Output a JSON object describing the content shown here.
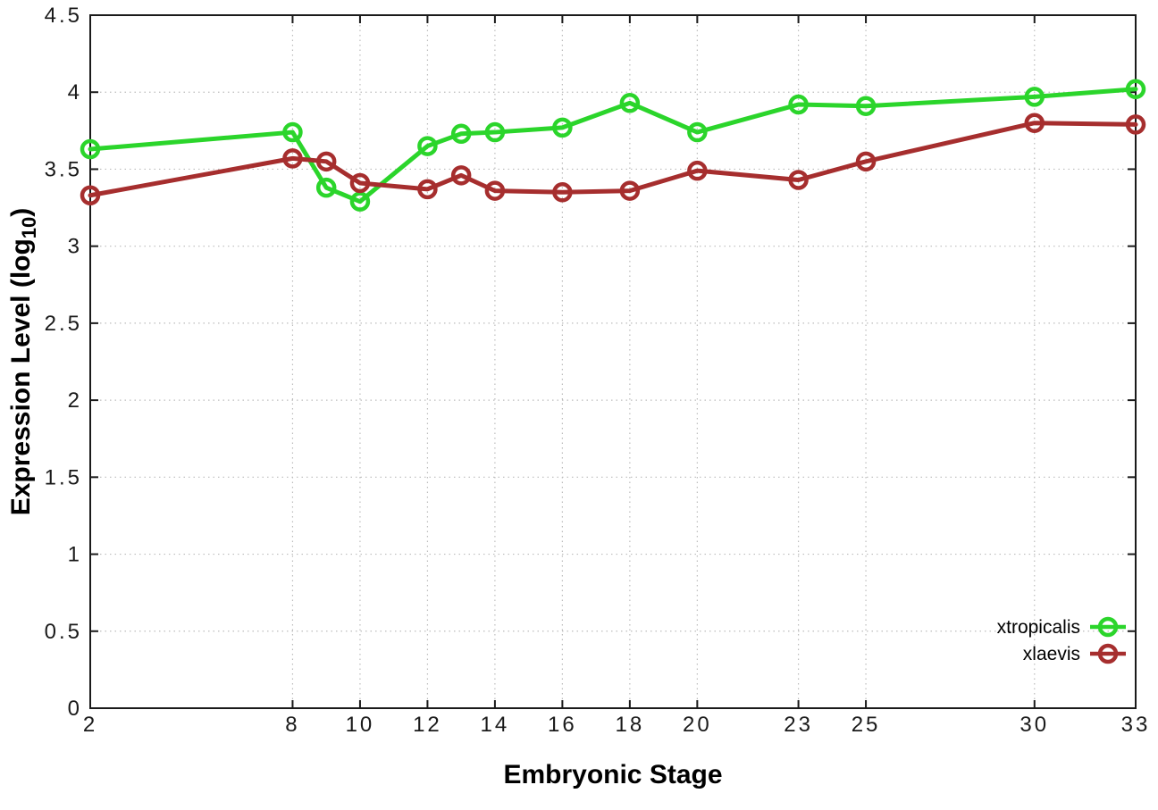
{
  "chart_data": {
    "type": "line",
    "title": "",
    "xlabel": "Embryonic Stage",
    "ylabel": "Expression Level (log10)",
    "ylabel_parts": {
      "prefix": "Expression Level (log",
      "subscript": "10",
      "suffix": ")"
    },
    "x": [
      2,
      8,
      9,
      10,
      12,
      13,
      14,
      16,
      18,
      20,
      23,
      25,
      30,
      33
    ],
    "series": [
      {
        "name": "xtropicalis",
        "color": "#2bd52b",
        "values": [
          3.63,
          3.74,
          3.38,
          3.29,
          3.65,
          3.73,
          3.74,
          3.77,
          3.93,
          3.74,
          3.92,
          3.91,
          3.97,
          4.02
        ]
      },
      {
        "name": "xlaevis",
        "color": "#a62e2e",
        "values": [
          3.33,
          3.57,
          3.55,
          3.41,
          3.37,
          3.46,
          3.36,
          3.35,
          3.36,
          3.49,
          3.43,
          3.55,
          3.8,
          3.79
        ]
      }
    ],
    "xlim": [
      2,
      33
    ],
    "ylim": [
      0,
      4.5
    ],
    "xticks": {
      "values": [
        2,
        8,
        10,
        12,
        14,
        16,
        18,
        20,
        23,
        25,
        30,
        33
      ],
      "labels": [
        "2",
        "8",
        "10",
        "12",
        "14",
        "16",
        "18",
        "20",
        "23",
        "25",
        "30",
        "33"
      ]
    },
    "yticks": {
      "values": [
        0,
        0.5,
        1,
        1.5,
        2,
        2.5,
        3,
        3.5,
        4,
        4.5
      ],
      "labels": [
        "0",
        "0.5",
        "1",
        "1.5",
        "2",
        "2.5",
        "3",
        "3.5",
        "4",
        "4.5"
      ]
    },
    "grid": true,
    "legend_position": "bottom-right",
    "marker": "open-circle"
  },
  "styles": {
    "background": "#ffffff",
    "grid_color": "#bcbcbc",
    "border_color": "#1a1a1a",
    "tick_label_color": "#1a1a1a",
    "axis_label_color": "#000000"
  }
}
